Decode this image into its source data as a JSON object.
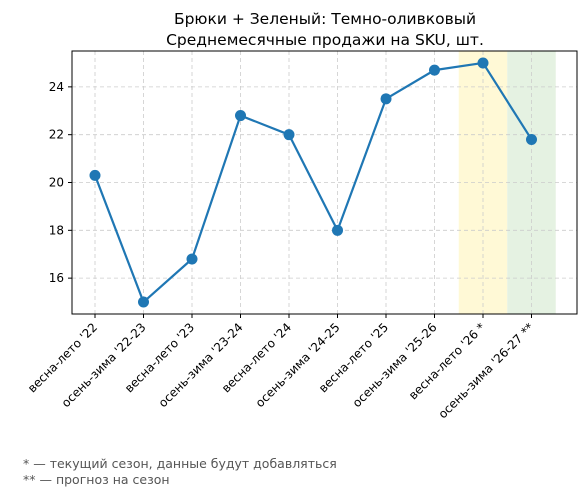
{
  "chart_data": {
    "type": "line",
    "title": "Брюки + Зеленый: Темно-оливковый",
    "subtitle": "Среднемесячные продажи на SKU, шт.",
    "xlabel": "",
    "ylabel": "",
    "categories": [
      "весна-лето '22",
      "осень-зима '22-23",
      "весна-лето '23",
      "осень-зима '23-24",
      "весна-лето '24",
      "осень-зима '24-25",
      "весна-лето '25",
      "осень-зима '25-26",
      "весна-лето '26 *",
      "осень-зима '26-27 **"
    ],
    "values": [
      20.3,
      15.0,
      16.8,
      22.8,
      22.0,
      18.0,
      23.5,
      24.7,
      25.0,
      21.8
    ],
    "ylim": [
      14.5,
      25.5
    ],
    "yticks": [
      16,
      18,
      20,
      22,
      24
    ],
    "grid": true,
    "highlights": [
      {
        "category": "весна-лето '26 *",
        "meaning": "current season",
        "color": "#fff9d6"
      },
      {
        "category": "осень-зима '26-27 **",
        "meaning": "forecast",
        "color": "#e5f2e2"
      }
    ],
    "line_color": "#1f77b4"
  },
  "footnotes": [
    "* — текущий сезон, данные будут добавляться",
    "** — прогноз на сезон"
  ]
}
